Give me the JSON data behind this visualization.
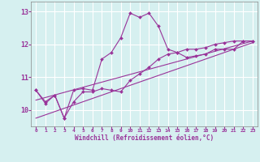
{
  "xlabel": "Windchill (Refroidissement éolien,°C)",
  "background_color": "#d6f0f0",
  "grid_color": "#b8dede",
  "line_color": "#993399",
  "xlim": [
    -0.5,
    23.5
  ],
  "ylim": [
    9.5,
    13.3
  ],
  "yticks": [
    10,
    11,
    12,
    13
  ],
  "xticks": [
    0,
    1,
    2,
    3,
    4,
    5,
    6,
    7,
    8,
    9,
    10,
    11,
    12,
    13,
    14,
    15,
    16,
    17,
    18,
    19,
    20,
    21,
    22,
    23
  ],
  "series1_x": [
    0,
    1,
    2,
    3,
    4,
    5,
    6,
    7,
    8,
    9,
    10,
    11,
    12,
    13,
    14,
    15,
    16,
    17,
    18,
    19,
    20,
    21,
    22,
    23
  ],
  "series1_y": [
    10.6,
    10.2,
    10.45,
    9.75,
    10.6,
    10.65,
    10.6,
    11.55,
    11.75,
    12.2,
    12.95,
    12.82,
    12.95,
    12.55,
    11.85,
    11.75,
    11.6,
    11.65,
    11.7,
    11.85,
    11.85,
    11.85,
    12.1,
    12.1
  ],
  "series2_x": [
    0,
    1,
    2,
    3,
    4,
    5,
    6,
    7,
    8,
    9,
    10,
    11,
    12,
    13,
    14,
    15,
    16,
    17,
    18,
    19,
    20,
    21,
    22,
    23
  ],
  "series2_y": [
    10.6,
    10.25,
    10.45,
    9.75,
    10.25,
    10.55,
    10.55,
    10.65,
    10.6,
    10.55,
    10.9,
    11.1,
    11.3,
    11.55,
    11.7,
    11.75,
    11.85,
    11.85,
    11.9,
    12.0,
    12.05,
    12.1,
    12.1,
    12.1
  ],
  "series3_x": [
    0,
    23
  ],
  "series3_y": [
    10.3,
    12.1
  ],
  "series4_x": [
    0,
    23
  ],
  "series4_y": [
    9.75,
    12.05
  ]
}
